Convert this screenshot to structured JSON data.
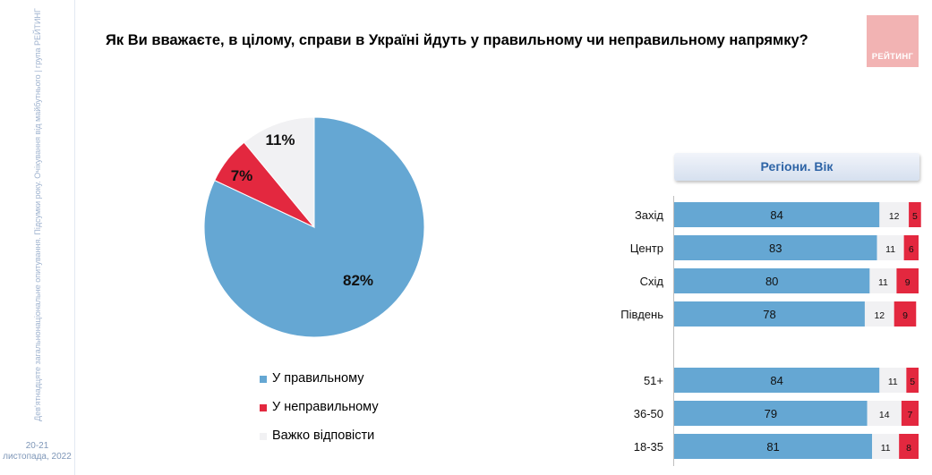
{
  "sidebar": {
    "vertical_text": "Дев'ятнадцяте загальнонаціональне опитування. Підсумки року. Очікування від майбутнього | група РЕЙТИНГ",
    "date_line1": "20-21",
    "date_line2": "листопада, 2022"
  },
  "logo": {
    "text": "РЕЙТИНГ"
  },
  "colors": {
    "correct": "#65a7d3",
    "incorrect": "#e3283f",
    "hard_to_say": "#f1f1f3",
    "axis": "#bfbfbf"
  },
  "chart_data": [
    {
      "type": "pie",
      "title": "Як Ви вважаєте, в цілому, справи в Україні йдуть у правильному чи неправильному напрямку?",
      "slices": [
        {
          "name": "У правильному",
          "value": 82,
          "label": "82%"
        },
        {
          "name": "У неправильному",
          "value": 7,
          "label": "7%"
        },
        {
          "name": "Важко відповісти",
          "value": 11,
          "label": "11%"
        }
      ]
    },
    {
      "type": "bar",
      "stacked": true,
      "orientation": "horizontal",
      "header": "Регіони. Вік",
      "categories": [
        "Захід",
        "Центр",
        "Схід",
        "Південь",
        "51+",
        "36-50",
        "18-35"
      ],
      "series": [
        {
          "name": "У правильному",
          "values": [
            84,
            83,
            80,
            78,
            84,
            79,
            81
          ]
        },
        {
          "name": "Важко відповісти",
          "values": [
            12,
            11,
            11,
            12,
            11,
            14,
            11
          ]
        },
        {
          "name": "У неправильному",
          "values": [
            5,
            6,
            9,
            9,
            5,
            7,
            8
          ]
        }
      ],
      "xlim": [
        0,
        100
      ]
    }
  ]
}
